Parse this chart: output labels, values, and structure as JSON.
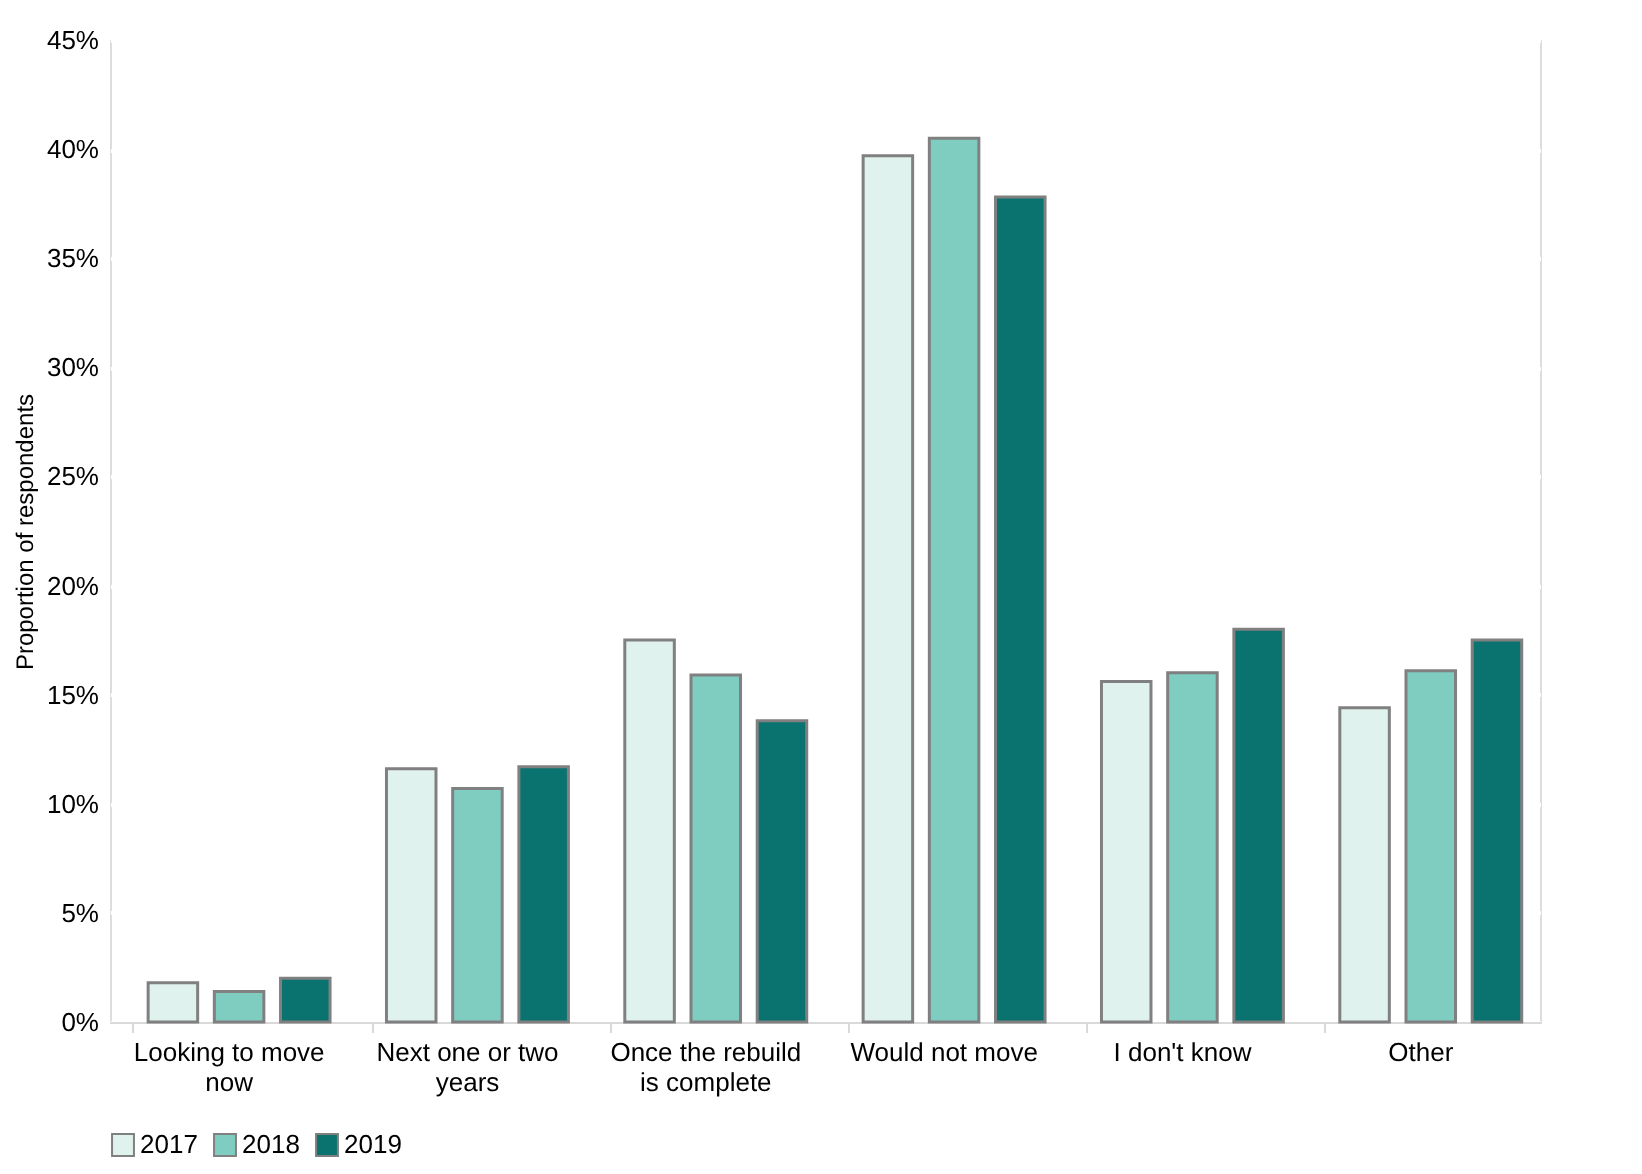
{
  "chart_data": {
    "type": "bar",
    "ylabel": "Proportion of respondents",
    "categories": [
      "Looking to move now",
      "Next one or two years",
      "Once the rebuild is complete",
      "Would not move",
      "I don't know",
      "Other"
    ],
    "series": [
      {
        "name": "2017",
        "color": "#e0f2ee",
        "values": [
          1.8,
          11.6,
          17.5,
          39.7,
          15.6,
          14.4
        ]
      },
      {
        "name": "2018",
        "color": "#7ecdc0",
        "values": [
          1.4,
          10.7,
          15.9,
          40.5,
          16.0,
          16.1
        ]
      },
      {
        "name": "2019",
        "color": "#0a7370",
        "values": [
          2.0,
          11.7,
          13.8,
          37.8,
          18.0,
          17.5
        ]
      }
    ],
    "ylim": [
      0,
      45
    ],
    "yticks": [
      {
        "value": 0,
        "label": "0%"
      },
      {
        "value": 5,
        "label": "5%"
      },
      {
        "value": 10,
        "label": "10%"
      },
      {
        "value": 15,
        "label": "15%"
      },
      {
        "value": 20,
        "label": "20%"
      },
      {
        "value": 25,
        "label": "25%"
      },
      {
        "value": 30,
        "label": "30%"
      },
      {
        "value": 35,
        "label": "35%"
      },
      {
        "value": 40,
        "label": "40%"
      },
      {
        "value": 45,
        "label": "45%"
      }
    ],
    "grid": "y",
    "legend": "bottom"
  }
}
